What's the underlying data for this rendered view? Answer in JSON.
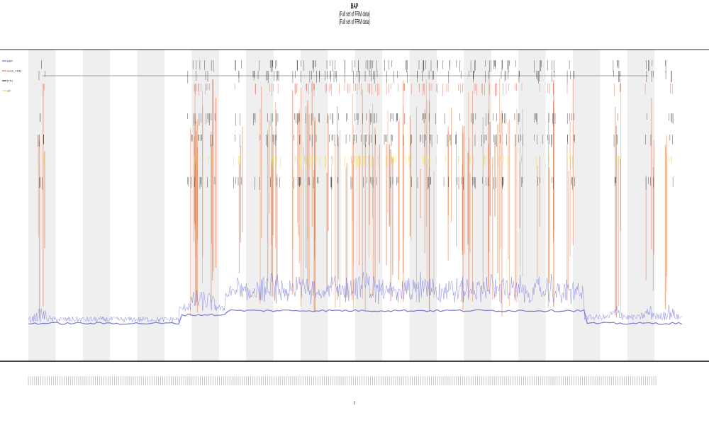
{
  "chart_data": {
    "type": "line",
    "title": "BAP",
    "subtitle_lines": [
      "(Full set of FRM data)",
      "(Full set of FRM data)"
    ],
    "xlabel": "t",
    "ylabel": "",
    "grid": false,
    "legend_position": "top-left",
    "legend_entries": [
      "BAP",
      "norm_FRM",
      "RTH",
      "ref"
    ],
    "shaded_bands": 12,
    "x_tick_count": 300,
    "series": [
      {
        "name": "BAP",
        "color": "#6b6bd8",
        "style": "dense-line-baseline"
      },
      {
        "name": "norm_FRM",
        "color": "#e8733c",
        "style": "vertical-spikes"
      },
      {
        "name": "RTH",
        "color": "#333333",
        "style": "event-ticks"
      },
      {
        "name": "ref",
        "color": "#e8d84a",
        "style": "event-ticks"
      }
    ],
    "event_columns": [
      0.02,
      0.25,
      0.26,
      0.27,
      0.28,
      0.32,
      0.35,
      0.37,
      0.38,
      0.41,
      0.42,
      0.43,
      0.44,
      0.46,
      0.47,
      0.49,
      0.5,
      0.51,
      0.52,
      0.53,
      0.55,
      0.56,
      0.58,
      0.6,
      0.61,
      0.62,
      0.64,
      0.66,
      0.68,
      0.7,
      0.71,
      0.72,
      0.73,
      0.75,
      0.78,
      0.8,
      0.83,
      0.9,
      0.95,
      0.98
    ],
    "colors": {
      "band": "#efefef",
      "axis": "#000000",
      "baseline": "#7777dd"
    }
  }
}
